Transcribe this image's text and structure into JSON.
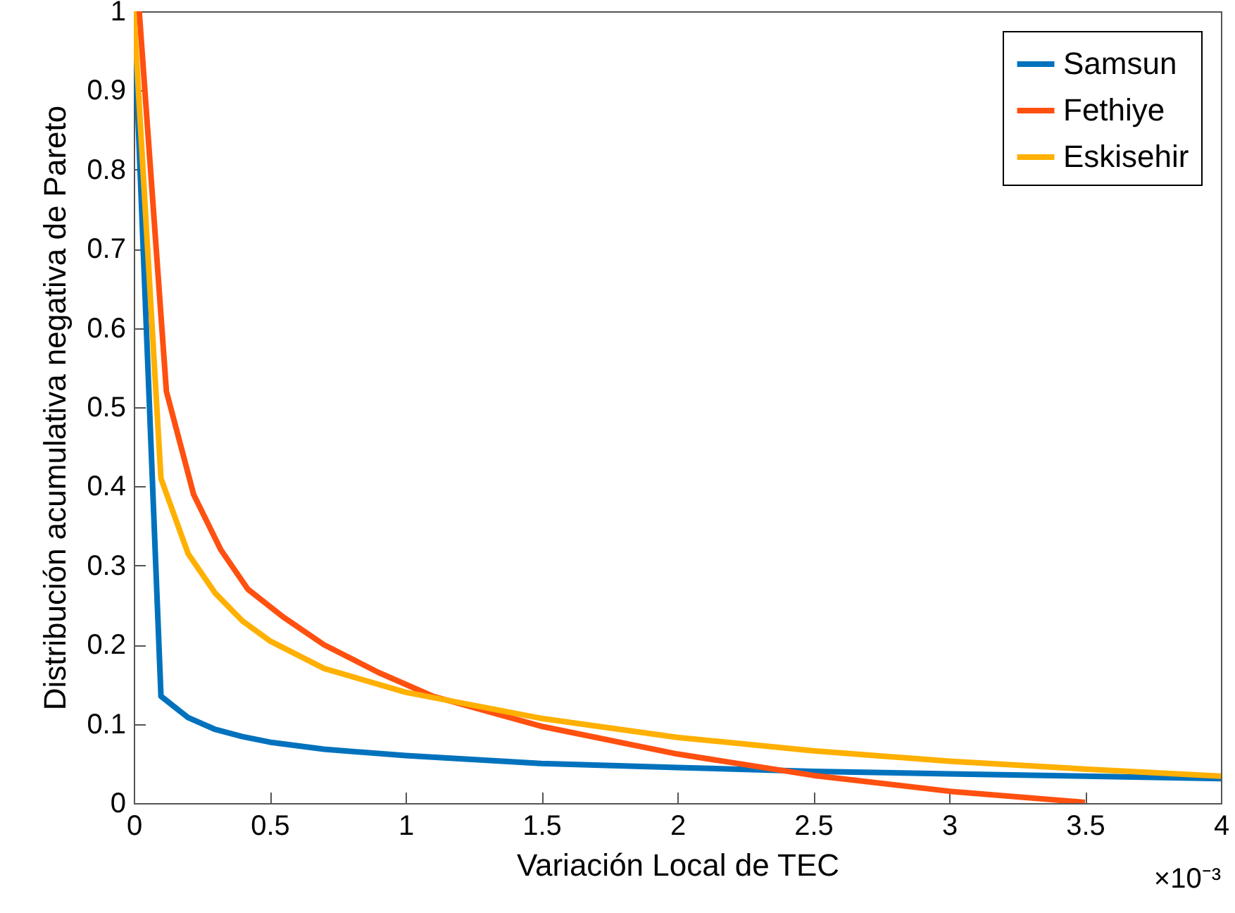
{
  "chart_data": {
    "type": "line",
    "xlabel": "Variación Local de TEC",
    "ylabel": "Distribución acumulativa negativa de Pareto",
    "xlim": [
      0,
      4
    ],
    "xticks": [
      0,
      0.5,
      1,
      1.5,
      2,
      2.5,
      3,
      3.5,
      4
    ],
    "ylim": [
      0,
      1
    ],
    "yticks": [
      0,
      0.1,
      0.2,
      0.3,
      0.4,
      0.5,
      0.6,
      0.7,
      0.8,
      0.9,
      1
    ],
    "grid": false,
    "legend": "top right",
    "annotations": [
      "×10⁻³"
    ],
    "series": [
      {
        "name": "Samsun",
        "color": "#0072bd",
        "x": [
          0,
          0.1,
          0.2,
          0.3,
          0.4,
          0.5,
          0.7,
          1,
          1.5,
          2,
          2.5,
          3,
          3.5,
          4
        ],
        "values": [
          1,
          0.135,
          0.108,
          0.093,
          0.084,
          0.077,
          0.068,
          0.06,
          0.05,
          0.045,
          0.04,
          0.037,
          0.034,
          0.031
        ]
      },
      {
        "name": "Fethiye",
        "color": "#ff5010",
        "x": [
          0.02,
          0.12,
          0.22,
          0.32,
          0.42,
          0.55,
          0.7,
          0.9,
          1.1,
          1.5,
          2,
          2.5,
          3,
          3.5
        ],
        "values": [
          1,
          0.52,
          0.39,
          0.32,
          0.27,
          0.235,
          0.2,
          0.165,
          0.135,
          0.097,
          0.062,
          0.035,
          0.015,
          0.001
        ]
      },
      {
        "name": "Eskisehir",
        "color": "#ffb000",
        "x": [
          0,
          0.1,
          0.2,
          0.3,
          0.4,
          0.5,
          0.7,
          1,
          1.5,
          2,
          2.5,
          3,
          3.5,
          4
        ],
        "values": [
          1,
          0.41,
          0.315,
          0.265,
          0.23,
          0.205,
          0.17,
          0.14,
          0.107,
          0.083,
          0.066,
          0.053,
          0.043,
          0.034
        ]
      }
    ]
  }
}
